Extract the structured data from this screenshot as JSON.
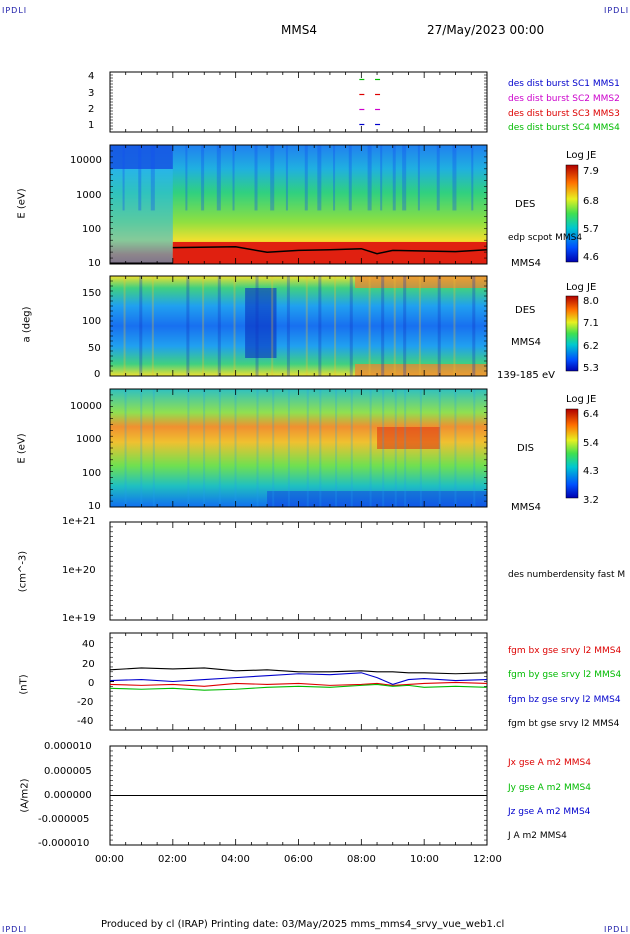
{
  "header": {
    "left_logo": "IPDLI",
    "right_logo": "IPDLI",
    "spacecraft": "MMS4",
    "datetime": "27/May/2023 00:00"
  },
  "footer": {
    "left_logo": "IPDLI",
    "right_logo": "IPDLI",
    "text": "Produced by cl (IRAP)   Printing date: 03/May/2025   mms_mms4_srvy_vue_web1.cl"
  },
  "x_axis": {
    "ticks": [
      "00:00",
      "02:00",
      "04:00",
      "06:00",
      "08:00",
      "10:00",
      "12:00"
    ]
  },
  "panels": {
    "burst": {
      "ticks": [
        "4",
        "3",
        "2",
        "1"
      ],
      "legend": [
        {
          "label": "des dist burst SC1 MMS1",
          "color": "#0000cc"
        },
        {
          "label": "des dist burst SC2 MMS2",
          "color": "#cc00cc"
        },
        {
          "label": "des dist burst SC3 MMS3",
          "color": "#dd0000"
        },
        {
          "label": "des dist burst SC4 MMS4",
          "color": "#00bb00"
        }
      ]
    },
    "des_energy": {
      "ylabel": "E (eV)",
      "ticks": [
        "10000",
        "1000",
        "100",
        "10"
      ],
      "label": "DES",
      "overlay_label": "edp scpot MMS4",
      "sc_label": "MMS4",
      "colorbar": {
        "title": "Log JE",
        "ticks": [
          "7.9",
          "6.8",
          "5.7",
          "4.6"
        ]
      }
    },
    "des_pitch": {
      "ylabel": "a (deg)",
      "ticks": [
        "150",
        "100",
        "50",
        "0"
      ],
      "label": "DES",
      "sc_label": "MMS4",
      "energy_label": "139-185 eV",
      "colorbar": {
        "title": "Log JE",
        "ticks": [
          "8.0",
          "7.1",
          "6.2",
          "5.3"
        ]
      }
    },
    "dis_energy": {
      "ylabel": "E (eV)",
      "ticks": [
        "10000",
        "1000",
        "100",
        "10"
      ],
      "label": "DIS",
      "sc_label": "MMS4",
      "colorbar": {
        "title": "Log JE",
        "ticks": [
          "6.4",
          "5.4",
          "4.3",
          "3.2"
        ]
      }
    },
    "density": {
      "ylabel": "(cm^-3)",
      "ticks": [
        "1e+21",
        "1e+20",
        "1e+19"
      ],
      "legend": "des numberdensity fast M"
    },
    "bfield": {
      "ylabel": "(nT)",
      "ticks": [
        "40",
        "20",
        "0",
        "-20",
        "-40"
      ],
      "legend": [
        {
          "label": "fgm bx gse srvy l2 MMS4",
          "color": "#dd0000"
        },
        {
          "label": "fgm by gse srvy l2 MMS4",
          "color": "#00bb00"
        },
        {
          "label": "fgm bz gse srvy l2 MMS4",
          "color": "#0000cc"
        },
        {
          "label": "fgm bt gse srvy l2 MMS4",
          "color": "#000000"
        }
      ]
    },
    "current": {
      "ylabel": "(A/m2)",
      "ticks": [
        "0.000010",
        "0.000005",
        "0.000000",
        "-0.000005",
        "-0.000010"
      ],
      "legend": [
        {
          "label": "Jx gse A m2 MMS4",
          "color": "#dd0000"
        },
        {
          "label": "Jy gse A m2 MMS4",
          "color": "#00bb00"
        },
        {
          "label": "Jz gse A m2 MMS4",
          "color": "#0000cc"
        },
        {
          "label": "J A m2 MMS4",
          "color": "#000000"
        }
      ]
    }
  },
  "chart_data": [
    {
      "type": "scatter",
      "title": "",
      "ylabel": "",
      "x": [
        "08:00",
        "08:30"
      ],
      "ylim": [
        0.5,
        4.5
      ],
      "series": [
        {
          "name": "des dist burst SC1 MMS1",
          "y": [
            1,
            1
          ]
        },
        {
          "name": "des dist burst SC2 MMS2",
          "y": [
            2,
            2
          ]
        },
        {
          "name": "des dist burst SC3 MMS3",
          "y": [
            3,
            3
          ]
        },
        {
          "name": "des dist burst SC4 MMS4",
          "y": [
            4,
            4
          ]
        }
      ]
    },
    {
      "type": "heatmap",
      "ylabel": "E (eV)",
      "ylim": [
        10,
        30000
      ],
      "y_scale": "log",
      "colorbar": {
        "title": "Log JE",
        "range": [
          4.6,
          7.9
        ]
      },
      "overlay": {
        "name": "edp scpot MMS4",
        "x_hours": [
          2,
          4,
          5,
          6,
          7,
          8,
          8.5,
          9,
          10,
          11,
          12
        ],
        "y": [
          30,
          32,
          22,
          25,
          26,
          28,
          20,
          25,
          24,
          23,
          26
        ]
      }
    },
    {
      "type": "heatmap",
      "ylabel": "a (deg)",
      "ylim": [
        0,
        180
      ],
      "colorbar": {
        "title": "Log JE",
        "range": [
          5.3,
          8.0
        ]
      }
    },
    {
      "type": "heatmap",
      "ylabel": "E (eV)",
      "ylim": [
        10,
        30000
      ],
      "y_scale": "log",
      "colorbar": {
        "title": "Log JE",
        "range": [
          3.2,
          6.4
        ]
      }
    },
    {
      "type": "line",
      "ylabel": "(nT)",
      "ylim": [
        -50,
        50
      ],
      "x_hours": [
        0,
        1,
        2,
        3,
        4,
        5,
        6,
        7,
        8,
        8.5,
        9,
        9.5,
        10,
        11,
        12
      ],
      "series": [
        {
          "name": "fgm bx gse srvy l2 MMS4",
          "values": [
            -3,
            -4,
            -3,
            -5,
            -2,
            -3,
            -2,
            -4,
            -3,
            -2,
            -4,
            -3,
            -2,
            -1,
            -2
          ]
        },
        {
          "name": "fgm by gse srvy l2 MMS4",
          "values": [
            -7,
            -8,
            -7,
            -9,
            -8,
            -6,
            -5,
            -6,
            -4,
            -3,
            -5,
            -4,
            -6,
            -5,
            -6
          ]
        },
        {
          "name": "fgm bz gse srvy l2 MMS4",
          "values": [
            1,
            2,
            0,
            2,
            4,
            6,
            8,
            7,
            9,
            4,
            -3,
            2,
            3,
            1,
            2
          ]
        },
        {
          "name": "fgm bt gse srvy l2 MMS4",
          "values": [
            12,
            14,
            13,
            14,
            11,
            12,
            10,
            10,
            11,
            10,
            10,
            9,
            9,
            8,
            9
          ]
        }
      ]
    },
    {
      "type": "line",
      "ylabel": "(A/m2)",
      "ylim": [
        -1e-05,
        1e-05
      ],
      "x_hours": [
        0,
        12
      ],
      "series": [
        {
          "name": "J A m2 MMS4",
          "values": [
            0,
            0
          ]
        }
      ]
    }
  ]
}
